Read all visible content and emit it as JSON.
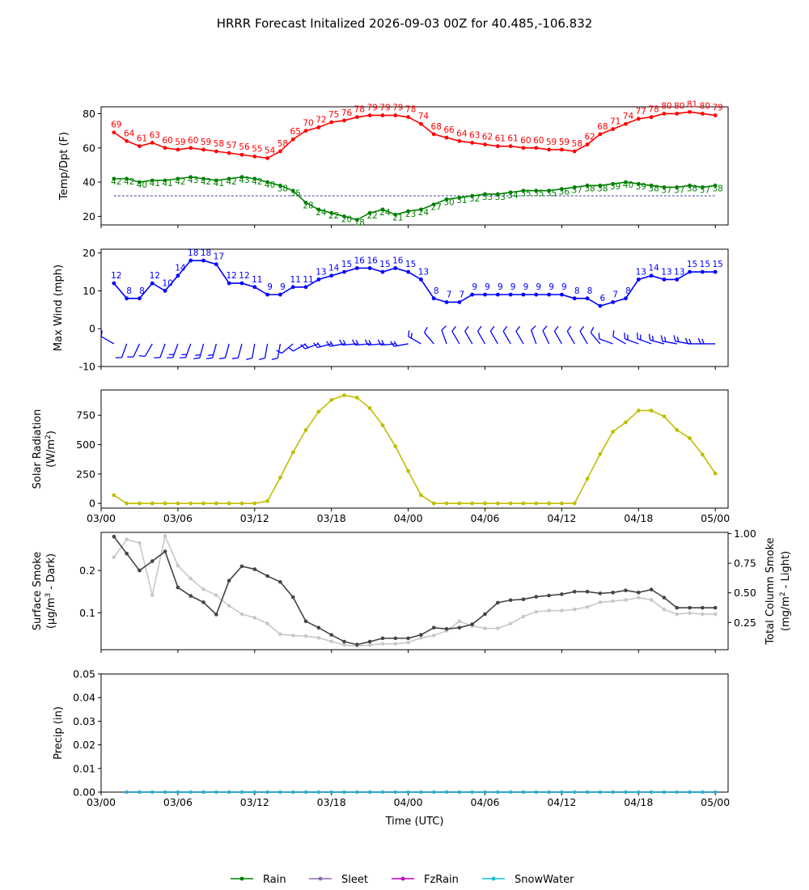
{
  "title": "HRRR Forecast Initalized 2026-09-03 00Z for 40.485,-106.832",
  "colors": {
    "temp": "#ff0000",
    "dewpoint": "#008000",
    "wind": "#0000ff",
    "solar": "#bfbf00",
    "surface_smoke": "#444444",
    "column_smoke": "#c8c8c8",
    "rain": "#008000",
    "sleet": "#8c6bb1",
    "fzrain": "#c000c0",
    "snowwater": "#17becf"
  },
  "chart_data": [
    {
      "type": "line",
      "panel": "temp",
      "ylabel": "Temp/Dpt (F)",
      "ylim": [
        15,
        84
      ],
      "yticks": [
        20,
        40,
        60,
        80
      ],
      "x": [
        1,
        2,
        3,
        4,
        5,
        6,
        7,
        8,
        9,
        10,
        11,
        12,
        13,
        14,
        15,
        16,
        17,
        18,
        19,
        20,
        21,
        22,
        23,
        24,
        25,
        26,
        27,
        28,
        29,
        30,
        31,
        32,
        33,
        34,
        35,
        36,
        37,
        38,
        39,
        40,
        41,
        42,
        43,
        44,
        45,
        46,
        47,
        48
      ],
      "series": [
        {
          "values": [
            69,
            64,
            61,
            63,
            60,
            59,
            60,
            59,
            58,
            57,
            56,
            55,
            54,
            58,
            65,
            70,
            72,
            75,
            76,
            78,
            79,
            79,
            79,
            78,
            74,
            68,
            66,
            64,
            63,
            62,
            61,
            61,
            60,
            60,
            59,
            59,
            58,
            62,
            68,
            71,
            74,
            77,
            78,
            80,
            80,
            81,
            80,
            79
          ]
        },
        {
          "values": [
            42,
            42,
            40,
            41,
            41,
            42,
            43,
            42,
            41,
            42,
            43,
            42,
            40,
            38,
            35,
            28,
            24,
            22,
            20,
            18,
            22,
            24,
            21,
            23,
            24,
            27,
            30,
            31,
            32,
            33,
            33,
            34,
            35,
            35,
            35,
            36,
            37,
            38,
            38,
            39,
            40,
            39,
            38,
            37,
            37,
            38,
            37,
            38
          ]
        }
      ],
      "reference_line": 32
    },
    {
      "type": "line",
      "panel": "wind",
      "ylabel": "Max Wind (mph)",
      "ylim": [
        -10,
        21
      ],
      "yticks": [
        -10,
        0,
        10,
        20
      ],
      "x": [
        1,
        2,
        3,
        4,
        5,
        6,
        7,
        8,
        9,
        10,
        11,
        12,
        13,
        14,
        15,
        16,
        17,
        18,
        19,
        20,
        21,
        22,
        23,
        24,
        25,
        26,
        27,
        28,
        29,
        30,
        31,
        32,
        33,
        34,
        35,
        36,
        37,
        38,
        39,
        40,
        41,
        42,
        43,
        44,
        45,
        46,
        47,
        48
      ],
      "series": [
        {
          "values": [
            12,
            8,
            8,
            12,
            10,
            14,
            18,
            18,
            17,
            12,
            12,
            11,
            9,
            9,
            11,
            11,
            13,
            14,
            15,
            16,
            16,
            15,
            16,
            15,
            13,
            8,
            7,
            7,
            9,
            9,
            9,
            9,
            9,
            9,
            9,
            9,
            8,
            8,
            6,
            7,
            8,
            13,
            14,
            13,
            13,
            15,
            15,
            15
          ]
        }
      ]
    },
    {
      "type": "line",
      "panel": "solar",
      "ylabel": "Solar Radiation (W/m²)",
      "ylim": [
        -40,
        965
      ],
      "yticks": [
        0,
        250,
        500,
        750
      ],
      "x": [
        1,
        2,
        3,
        4,
        5,
        6,
        7,
        8,
        9,
        10,
        11,
        12,
        13,
        14,
        15,
        16,
        17,
        18,
        19,
        20,
        21,
        22,
        23,
        24,
        25,
        26,
        27,
        28,
        29,
        30,
        31,
        32,
        33,
        34,
        35,
        36,
        37,
        38,
        39,
        40,
        41,
        42,
        43,
        44,
        45,
        46,
        47,
        48
      ],
      "series": [
        {
          "values": [
            70,
            0,
            0,
            0,
            0,
            0,
            0,
            0,
            0,
            0,
            0,
            0,
            20,
            220,
            435,
            625,
            780,
            880,
            920,
            900,
            810,
            665,
            485,
            275,
            70,
            0,
            0,
            0,
            0,
            0,
            0,
            0,
            0,
            0,
            0,
            0,
            0,
            210,
            420,
            610,
            690,
            790,
            790,
            740,
            625,
            555,
            415,
            255
          ]
        }
      ]
    },
    {
      "type": "line",
      "panel": "smoke",
      "ylabel": "Surface Smoke (μg/m³ - Dark)",
      "y2label": "Total Column Smoke (mg/m² - Light)",
      "ylim": [
        0.013,
        0.29
      ],
      "yticks": [
        0.1,
        0.2
      ],
      "y2lim": [
        0.02,
        1.01
      ],
      "y2ticks": [
        0.25,
        0.5,
        0.75,
        1.0
      ],
      "x": [
        1,
        2,
        3,
        4,
        5,
        6,
        7,
        8,
        9,
        10,
        11,
        12,
        13,
        14,
        15,
        16,
        17,
        18,
        19,
        20,
        21,
        22,
        23,
        24,
        25,
        26,
        27,
        28,
        29,
        30,
        31,
        32,
        33,
        34,
        35,
        36,
        37,
        38,
        39,
        40,
        41,
        42,
        43,
        44,
        45,
        46,
        47,
        48
      ],
      "series": [
        {
          "values": [
            0.28,
            0.24,
            0.2,
            0.222,
            0.245,
            0.16,
            0.14,
            0.125,
            0.096,
            0.176,
            0.21,
            0.203,
            0.187,
            0.173,
            0.137,
            0.08,
            0.065,
            0.048,
            0.032,
            0.025,
            0.032,
            0.04,
            0.04,
            0.04,
            0.048,
            0.065,
            0.062,
            0.065,
            0.073,
            0.097,
            0.124,
            0.13,
            0.132,
            0.138,
            0.141,
            0.144,
            0.15,
            0.15,
            0.146,
            0.148,
            0.153,
            0.148,
            0.155,
            0.136,
            0.112,
            0.112,
            0.112,
            0.112
          ]
        },
        {
          "values": [
            0.8,
            0.95,
            0.92,
            0.48,
            0.98,
            0.73,
            0.62,
            0.53,
            0.48,
            0.39,
            0.32,
            0.29,
            0.24,
            0.15,
            0.14,
            0.135,
            0.12,
            0.09,
            0.06,
            0.05,
            0.06,
            0.07,
            0.07,
            0.08,
            0.12,
            0.14,
            0.18,
            0.26,
            0.22,
            0.2,
            0.2,
            0.24,
            0.3,
            0.34,
            0.35,
            0.35,
            0.36,
            0.38,
            0.42,
            0.43,
            0.44,
            0.46,
            0.44,
            0.36,
            0.32,
            0.33,
            0.32,
            0.32
          ]
        }
      ]
    },
    {
      "type": "line",
      "panel": "precip",
      "ylabel": "Precip (in)",
      "xlabel": "Time (UTC)",
      "ylim": [
        0,
        0.05
      ],
      "yticks": [
        0.0,
        0.01,
        0.02,
        0.03,
        0.04,
        0.05
      ],
      "x": [
        2,
        3,
        4,
        5,
        6,
        7,
        8,
        9,
        10,
        11,
        12,
        13,
        14,
        15,
        16,
        17,
        18,
        19,
        20,
        21,
        22,
        23,
        24,
        25,
        26,
        27,
        28,
        29,
        30,
        31,
        32,
        33,
        34,
        35,
        36,
        37,
        38,
        39,
        40,
        41,
        42,
        43,
        44,
        45,
        46,
        47,
        48
      ],
      "series": [
        {
          "name": "Rain",
          "values": [
            0,
            0,
            0,
            0,
            0,
            0,
            0,
            0,
            0,
            0,
            0,
            0,
            0,
            0,
            0,
            0,
            0,
            0,
            0,
            0,
            0,
            0,
            0,
            0,
            0,
            0,
            0,
            0,
            0,
            0,
            0,
            0,
            0,
            0,
            0,
            0,
            0,
            0,
            0,
            0,
            0,
            0,
            0,
            0,
            0,
            0,
            0
          ]
        },
        {
          "name": "Sleet",
          "values": [
            0,
            0,
            0,
            0,
            0,
            0,
            0,
            0,
            0,
            0,
            0,
            0,
            0,
            0,
            0,
            0,
            0,
            0,
            0,
            0,
            0,
            0,
            0,
            0,
            0,
            0,
            0,
            0,
            0,
            0,
            0,
            0,
            0,
            0,
            0,
            0,
            0,
            0,
            0,
            0,
            0,
            0,
            0,
            0,
            0,
            0,
            0
          ]
        },
        {
          "name": "FzRain",
          "values": [
            0,
            0,
            0,
            0,
            0,
            0,
            0,
            0,
            0,
            0,
            0,
            0,
            0,
            0,
            0,
            0,
            0,
            0,
            0,
            0,
            0,
            0,
            0,
            0,
            0,
            0,
            0,
            0,
            0,
            0,
            0,
            0,
            0,
            0,
            0,
            0,
            0,
            0,
            0,
            0,
            0,
            0,
            0,
            0,
            0,
            0,
            0
          ]
        },
        {
          "name": "SnowWater",
          "values": [
            0,
            0,
            0,
            0,
            0,
            0,
            0,
            0,
            0,
            0,
            0,
            0,
            0,
            0,
            0,
            0,
            0,
            0,
            0,
            0,
            0,
            0,
            0,
            0,
            0,
            0,
            0,
            0,
            0,
            0,
            0,
            0,
            0,
            0,
            0,
            0,
            0,
            0,
            0,
            0,
            0,
            0,
            0,
            0,
            0,
            0,
            0
          ]
        }
      ]
    }
  ],
  "x_axis": {
    "xlim": [
      0,
      49
    ],
    "ticks": [
      0,
      6,
      12,
      18,
      24,
      30,
      36,
      42,
      48
    ],
    "tick_labels": [
      "03/00",
      "03/06",
      "03/12",
      "03/18",
      "04/00",
      "04/06",
      "04/12",
      "04/18",
      "05/00"
    ]
  },
  "wind_barbs": {
    "y": -4,
    "direction_deg": [
      300,
      200,
      205,
      210,
      200,
      200,
      200,
      195,
      195,
      195,
      195,
      190,
      190,
      190,
      230,
      240,
      250,
      255,
      260,
      265,
      265,
      265,
      265,
      260,
      300,
      320,
      340,
      330,
      330,
      330,
      330,
      330,
      330,
      340,
      335,
      330,
      330,
      330,
      320,
      290,
      300,
      290,
      290,
      285,
      280,
      280,
      270,
      270
    ]
  },
  "legend": {
    "items": [
      {
        "label": "Rain",
        "color": "#008000"
      },
      {
        "label": "Sleet",
        "color": "#8c6bb1"
      },
      {
        "label": "FzRain",
        "color": "#c000c0"
      },
      {
        "label": "SnowWater",
        "color": "#17becf"
      }
    ]
  }
}
